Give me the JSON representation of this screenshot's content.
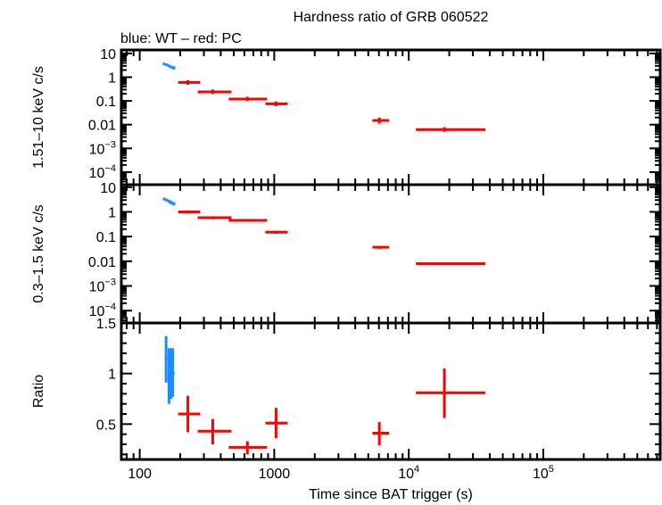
{
  "chart_data": {
    "type": "scatter",
    "title": "Hardness ratio of GRB 060522",
    "subtitle": "blue: WT – red: PC",
    "xlabel": "Time since BAT trigger (s)",
    "xscale": "log",
    "xlim": [
      73,
      740000
    ],
    "x_ticks": [
      {
        "value": 100,
        "label": "100"
      },
      {
        "value": 1000,
        "label": "1000"
      },
      {
        "value": 10000,
        "label": "10^4"
      },
      {
        "value": 100000,
        "label": "10^5"
      }
    ],
    "colors": {
      "WT": "#1e8cff",
      "PC": "#ff0000"
    },
    "panels": [
      {
        "id": "hard",
        "ylabel": "1.51–10 keV c/s",
        "yscale": "log",
        "ylim": [
          2.95e-05,
          14
        ],
        "y_ticks": [
          {
            "value": 10,
            "label": "10"
          },
          {
            "value": 1,
            "label": "1"
          },
          {
            "value": 0.1,
            "label": "0.1"
          },
          {
            "value": 0.01,
            "label": "0.01"
          },
          {
            "value": 0.001,
            "label": "10^−3"
          },
          {
            "value": 0.0001,
            "label": "10^−4"
          }
        ],
        "series": [
          {
            "name": "WT",
            "points": [
              {
                "x": 152,
                "xlo": 149,
                "xhi": 156,
                "y": 3.6,
                "ylo": 3.2,
                "yhi": 4.0
              },
              {
                "x": 159,
                "xlo": 156,
                "xhi": 162,
                "y": 3.3,
                "ylo": 2.9,
                "yhi": 3.7
              },
              {
                "x": 165,
                "xlo": 162,
                "xhi": 168,
                "y": 3.0,
                "ylo": 2.6,
                "yhi": 3.4
              },
              {
                "x": 171,
                "xlo": 168,
                "xhi": 175,
                "y": 2.7,
                "ylo": 2.3,
                "yhi": 3.1
              },
              {
                "x": 179,
                "xlo": 175,
                "xhi": 184,
                "y": 2.5,
                "ylo": 2.1,
                "yhi": 2.9
              }
            ]
          },
          {
            "name": "PC",
            "points": [
              {
                "x": 228,
                "xlo": 193,
                "xhi": 282,
                "y": 0.6,
                "ylo": 0.48,
                "yhi": 0.75
              },
              {
                "x": 349,
                "xlo": 270,
                "xhi": 481,
                "y": 0.24,
                "ylo": 0.2,
                "yhi": 0.3
              },
              {
                "x": 631,
                "xlo": 459,
                "xhi": 885,
                "y": 0.12,
                "ylo": 0.1,
                "yhi": 0.15
              },
              {
                "x": 1031,
                "xlo": 859,
                "xhi": 1259,
                "y": 0.075,
                "ylo": 0.06,
                "yhi": 0.095
              },
              {
                "x": 6040,
                "xlo": 5370,
                "xhi": 7150,
                "y": 0.015,
                "ylo": 0.011,
                "yhi": 0.02
              },
              {
                "x": 18400,
                "xlo": 11300,
                "xhi": 37200,
                "y": 0.0062,
                "ylo": 0.005,
                "yhi": 0.0078
              }
            ]
          }
        ]
      },
      {
        "id": "soft",
        "ylabel": "0.3–1.5 keV c/s",
        "yscale": "log",
        "ylim": [
          3.16e-05,
          12.6
        ],
        "y_ticks": [
          {
            "value": 10,
            "label": "10"
          },
          {
            "value": 1,
            "label": "1"
          },
          {
            "value": 0.1,
            "label": "0.1"
          },
          {
            "value": 0.01,
            "label": "0.01"
          },
          {
            "value": 0.001,
            "label": "10^−3"
          },
          {
            "value": 0.0001,
            "label": "10^−4"
          }
        ],
        "series": [
          {
            "name": "WT",
            "points": [
              {
                "x": 152,
                "xlo": 149,
                "xhi": 156,
                "y": 3.3,
                "ylo": 2.9,
                "yhi": 3.7
              },
              {
                "x": 159,
                "xlo": 156,
                "xhi": 162,
                "y": 3.0,
                "ylo": 2.6,
                "yhi": 3.4
              },
              {
                "x": 165,
                "xlo": 162,
                "xhi": 168,
                "y": 2.7,
                "ylo": 2.3,
                "yhi": 3.1
              },
              {
                "x": 171,
                "xlo": 168,
                "xhi": 175,
                "y": 2.4,
                "ylo": 2.0,
                "yhi": 2.8
              },
              {
                "x": 179,
                "xlo": 175,
                "xhi": 184,
                "y": 2.1,
                "ylo": 1.8,
                "yhi": 2.5
              }
            ]
          },
          {
            "name": "PC",
            "points": [
              {
                "x": 228,
                "xlo": 193,
                "xhi": 282,
                "y": 1.0,
                "ylo": 0.85,
                "yhi": 1.15
              },
              {
                "x": 349,
                "xlo": 270,
                "xhi": 481,
                "y": 0.58,
                "ylo": 0.5,
                "yhi": 0.66
              },
              {
                "x": 631,
                "xlo": 459,
                "xhi": 885,
                "y": 0.45,
                "ylo": 0.4,
                "yhi": 0.5
              },
              {
                "x": 1031,
                "xlo": 859,
                "xhi": 1259,
                "y": 0.15,
                "ylo": 0.13,
                "yhi": 0.17
              },
              {
                "x": 6040,
                "xlo": 5370,
                "xhi": 7150,
                "y": 0.037,
                "ylo": 0.032,
                "yhi": 0.042
              },
              {
                "x": 18400,
                "xlo": 11300,
                "xhi": 37200,
                "y": 0.008,
                "ylo": 0.007,
                "yhi": 0.009
              }
            ]
          }
        ]
      },
      {
        "id": "ratio",
        "ylabel": "Ratio",
        "yscale": "linear",
        "ylim": [
          0.15,
          1.5
        ],
        "y_ticks": [
          {
            "value": 0.5,
            "label": "0.5"
          },
          {
            "value": 1,
            "label": "1"
          },
          {
            "value": 1.5,
            "label": "1.5"
          }
        ],
        "minor_step": 0.1,
        "series": [
          {
            "name": "WT",
            "points": [
              {
                "x": 157,
                "xlo": 153,
                "xhi": 161,
                "y": 1.15,
                "ylo": 0.91,
                "yhi": 1.37
              },
              {
                "x": 165,
                "xlo": 161,
                "xhi": 168,
                "y": 0.95,
                "ylo": 0.7,
                "yhi": 1.25
              },
              {
                "x": 171,
                "xlo": 167,
                "xhi": 175,
                "y": 1.0,
                "ylo": 0.75,
                "yhi": 1.25
              },
              {
                "x": 176,
                "xlo": 172,
                "xhi": 182,
                "y": 1.0,
                "ylo": 0.77,
                "yhi": 1.25
              }
            ]
          },
          {
            "name": "PC",
            "points": [
              {
                "x": 228,
                "xlo": 193,
                "xhi": 282,
                "y": 0.6,
                "ylo": 0.42,
                "yhi": 0.78
              },
              {
                "x": 349,
                "xlo": 270,
                "xhi": 481,
                "y": 0.43,
                "ylo": 0.3,
                "yhi": 0.55
              },
              {
                "x": 631,
                "xlo": 459,
                "xhi": 885,
                "y": 0.27,
                "ylo": 0.2,
                "yhi": 0.33
              },
              {
                "x": 1031,
                "xlo": 859,
                "xhi": 1259,
                "y": 0.51,
                "ylo": 0.36,
                "yhi": 0.66
              },
              {
                "x": 6040,
                "xlo": 5370,
                "xhi": 7150,
                "y": 0.41,
                "ylo": 0.29,
                "yhi": 0.52
              },
              {
                "x": 18400,
                "xlo": 11300,
                "xhi": 37200,
                "y": 0.81,
                "ylo": 0.56,
                "yhi": 1.05
              }
            ]
          }
        ]
      }
    ]
  }
}
